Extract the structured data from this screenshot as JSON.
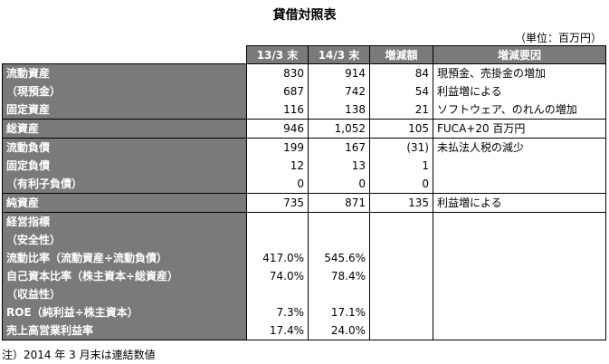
{
  "title": "貸借対照表",
  "unit": "（単位：百万円）",
  "headers": [
    "",
    "13/3 末",
    "14/3 末",
    "増減額",
    "増減要因"
  ],
  "rows": [
    {
      "label": "流動資産",
      "a": "830",
      "b": "914",
      "diff": "84",
      "reason": "現預金、売掛金の増加"
    },
    {
      "label": "（現預金）",
      "a": "687",
      "b": "742",
      "diff": "54",
      "reason": "利益増による"
    },
    {
      "label": "固定資産",
      "a": "116",
      "b": "138",
      "diff": "21",
      "reason": "ソフトウェア、のれんの増加"
    },
    {
      "label": "総資産",
      "a": "946",
      "b": "1,052",
      "diff": "105",
      "reason": "FUCA+20 百万円"
    },
    {
      "label": "流動負債",
      "a": "199",
      "b": "167",
      "diff": "(31)",
      "reason": "未払法人税の減少"
    },
    {
      "label": "固定負債",
      "a": "12",
      "b": "13",
      "diff": "1",
      "reason": ""
    },
    {
      "label": "（有利子負債）",
      "a": "0",
      "b": "0",
      "diff": "0",
      "reason": ""
    },
    {
      "label": "純資産",
      "a": "735",
      "b": "871",
      "diff": "135",
      "reason": "利益増による"
    },
    {
      "label": "経営指標",
      "a": "",
      "b": "",
      "diff": "",
      "reason": ""
    },
    {
      "label": "（安全性）",
      "a": "",
      "b": "",
      "diff": "",
      "reason": ""
    },
    {
      "label": "流動比率（流動資産÷流動負債）",
      "a": "417.0%",
      "b": "545.6%",
      "diff": "",
      "reason": ""
    },
    {
      "label": "自己資本比率（株主資本÷総資産）",
      "a": "74.0%",
      "b": "78.4%",
      "diff": "",
      "reason": ""
    },
    {
      "label": "（収益性）",
      "a": "",
      "b": "",
      "diff": "",
      "reason": ""
    },
    {
      "label": "ROE（純利益÷株主資本）",
      "a": "7.3%",
      "b": "17.1%",
      "diff": "",
      "reason": ""
    },
    {
      "label": "売上高営業利益率",
      "a": "17.4%",
      "b": "24.0%",
      "diff": "",
      "reason": ""
    }
  ],
  "note": "注）2014 年 3 月末は連結数値"
}
